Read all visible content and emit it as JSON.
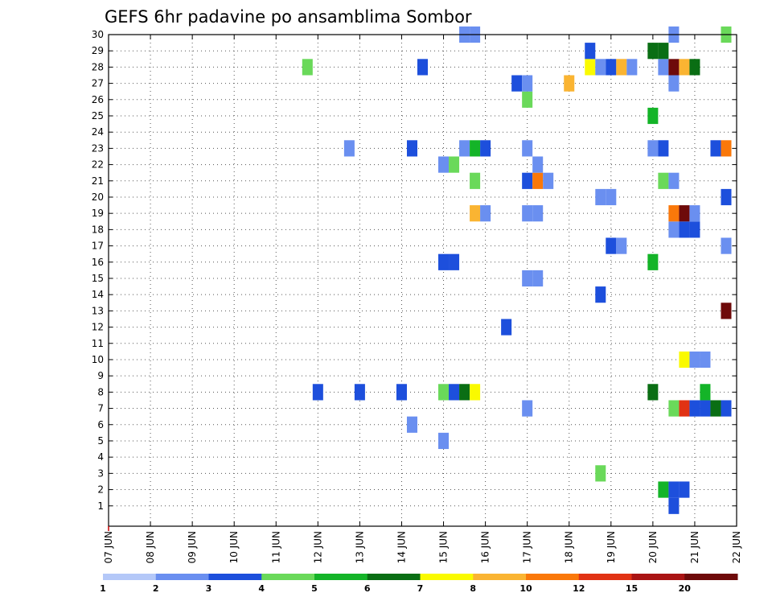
{
  "chart_data": {
    "type": "heatmap",
    "title": "GEFS 6hr padavine po ansamblima Sombor",
    "x_tick_labels": [
      "07 JUN",
      "08 JUN",
      "09 JUN",
      "10 JUN",
      "11 JUN",
      "12 JUN",
      "13 JUN",
      "14 JUN",
      "15 JUN",
      "16 JUN",
      "17 JUN",
      "18 JUN",
      "19 JUN",
      "20 JUN",
      "21 JUN",
      "22 JUN"
    ],
    "y_tick_labels": [
      "1",
      "2",
      "3",
      "4",
      "5",
      "6",
      "7",
      "8",
      "9",
      "10",
      "11",
      "12",
      "13",
      "14",
      "15",
      "16",
      "17",
      "18",
      "19",
      "20",
      "21",
      "22",
      "23",
      "24",
      "25",
      "26",
      "27",
      "28",
      "29",
      "30"
    ],
    "x_range": [
      "07 JUN",
      "22 JUN"
    ],
    "y_range": [
      0,
      30
    ],
    "x_unit": "days (6-hourly steps)",
    "grid": "dotted",
    "colorbar": {
      "labels": [
        "1",
        "2",
        "3",
        "4",
        "5",
        "6",
        "7",
        "8",
        "10",
        "12",
        "15",
        "20"
      ],
      "colors": [
        "#b4c8f8",
        "#6a8ff0",
        "#1d4fdc",
        "#6ad95a",
        "#14b428",
        "#0a6e14",
        "#fafa00",
        "#fab432",
        "#fa780a",
        "#e13214",
        "#aa1414",
        "#6e0a0a"
      ]
    },
    "cells": [
      [
        13.25,
        1,
        5
      ],
      [
        13.5,
        1,
        3
      ],
      [
        13.75,
        1,
        3
      ],
      [
        13.5,
        0,
        3
      ],
      [
        11.75,
        2,
        4
      ],
      [
        8.0,
        4,
        2
      ],
      [
        7.25,
        5,
        2
      ],
      [
        10.0,
        6,
        2
      ],
      [
        13.5,
        6,
        4
      ],
      [
        13.75,
        6,
        10
      ],
      [
        14.0,
        6,
        3
      ],
      [
        14.25,
        6,
        3
      ],
      [
        14.5,
        6,
        6
      ],
      [
        14.75,
        6,
        3
      ],
      [
        5.0,
        7,
        3
      ],
      [
        6.0,
        7,
        3
      ],
      [
        7.0,
        7,
        3
      ],
      [
        8.0,
        7,
        4
      ],
      [
        8.25,
        7,
        3
      ],
      [
        8.5,
        7,
        6
      ],
      [
        8.75,
        7,
        7
      ],
      [
        13.0,
        7,
        6
      ],
      [
        14.25,
        7,
        5
      ],
      [
        13.75,
        9,
        7
      ],
      [
        14.0,
        9,
        2
      ],
      [
        14.25,
        9,
        2
      ],
      [
        9.5,
        11,
        3
      ],
      [
        14.75,
        12,
        15
      ],
      [
        11.75,
        13,
        3
      ],
      [
        10.0,
        14,
        2
      ],
      [
        10.25,
        14,
        2
      ],
      [
        8.0,
        15,
        3
      ],
      [
        8.25,
        15,
        3
      ],
      [
        13.0,
        15,
        5
      ],
      [
        12.0,
        16,
        3
      ],
      [
        12.25,
        16,
        2
      ],
      [
        14.75,
        16,
        2
      ],
      [
        13.5,
        17,
        2
      ],
      [
        13.75,
        17,
        3
      ],
      [
        14.0,
        17,
        3
      ],
      [
        8.75,
        18,
        8
      ],
      [
        9.0,
        18,
        2
      ],
      [
        10.0,
        18,
        2
      ],
      [
        10.25,
        18,
        2
      ],
      [
        13.5,
        18,
        9
      ],
      [
        13.75,
        18,
        15
      ],
      [
        14.0,
        18,
        2
      ],
      [
        11.75,
        19,
        2
      ],
      [
        12.0,
        19,
        2
      ],
      [
        14.75,
        19,
        3
      ],
      [
        8.75,
        20,
        4
      ],
      [
        10.0,
        20,
        3
      ],
      [
        10.25,
        20,
        9
      ],
      [
        10.5,
        20,
        2
      ],
      [
        13.25,
        20,
        4
      ],
      [
        13.5,
        20,
        2
      ],
      [
        8.0,
        21,
        2
      ],
      [
        8.25,
        21,
        4
      ],
      [
        10.25,
        21,
        2
      ],
      [
        5.75,
        22,
        2
      ],
      [
        7.25,
        22,
        3
      ],
      [
        8.5,
        22,
        2
      ],
      [
        8.75,
        22,
        5
      ],
      [
        9.0,
        22,
        3
      ],
      [
        10.0,
        22,
        2
      ],
      [
        13.0,
        22,
        2
      ],
      [
        13.25,
        22,
        3
      ],
      [
        14.5,
        22,
        3
      ],
      [
        14.75,
        22,
        9
      ],
      [
        13.0,
        24,
        5
      ],
      [
        10.0,
        25,
        4
      ],
      [
        9.75,
        26,
        3
      ],
      [
        10.0,
        26,
        2
      ],
      [
        11.0,
        26,
        8
      ],
      [
        13.5,
        26,
        2
      ],
      [
        4.75,
        27,
        4
      ],
      [
        7.5,
        27,
        3
      ],
      [
        11.5,
        27,
        7
      ],
      [
        11.75,
        27,
        2
      ],
      [
        12.0,
        27,
        3
      ],
      [
        12.25,
        27,
        8
      ],
      [
        12.5,
        27,
        2
      ],
      [
        13.25,
        27,
        2
      ],
      [
        13.5,
        27,
        15
      ],
      [
        13.75,
        27,
        8
      ],
      [
        14.0,
        27,
        6
      ],
      [
        11.5,
        28,
        3
      ],
      [
        13.0,
        28,
        6
      ],
      [
        13.25,
        28,
        6
      ],
      [
        8.5,
        29,
        2
      ],
      [
        8.75,
        29,
        2
      ],
      [
        13.5,
        29,
        2
      ],
      [
        14.75,
        29,
        4
      ]
    ]
  }
}
